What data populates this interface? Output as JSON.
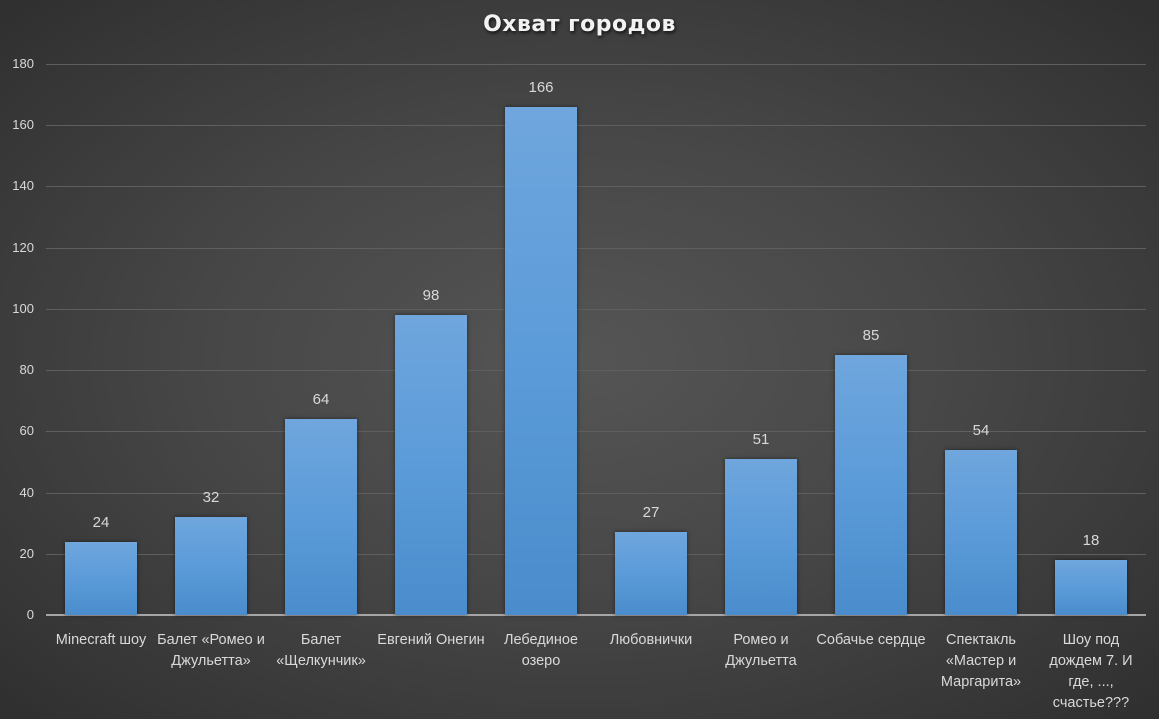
{
  "chart_data": {
    "type": "bar",
    "title": "Охват городов",
    "xlabel": "",
    "ylabel": "",
    "ylim": [
      0,
      180
    ],
    "yticks": [
      0,
      20,
      40,
      60,
      80,
      100,
      120,
      140,
      160,
      180
    ],
    "grid": true,
    "legend": "none",
    "categories": [
      "Minecraft шоу",
      "Балет «Ромео и Джульетта»",
      "Балет «Щелкунчик»",
      "Евгений Онегин",
      "Лебединое озеро",
      "Любовнички",
      "Ромео и Джульетта",
      "Собачье сердце",
      "Спектакль «Мастер и Маргарита»",
      "Шоу под дождем 7. И где, ..., счастье???"
    ],
    "values": [
      24,
      32,
      64,
      98,
      166,
      27,
      51,
      85,
      54,
      18
    ],
    "bar_color": "#5b9bd5",
    "background": "#404040"
  },
  "labels": {
    "yticks": [
      "0",
      "20",
      "40",
      "60",
      "80",
      "100",
      "120",
      "140",
      "160",
      "180"
    ],
    "values": [
      "24",
      "32",
      "64",
      "98",
      "166",
      "27",
      "51",
      "85",
      "54",
      "18"
    ]
  }
}
